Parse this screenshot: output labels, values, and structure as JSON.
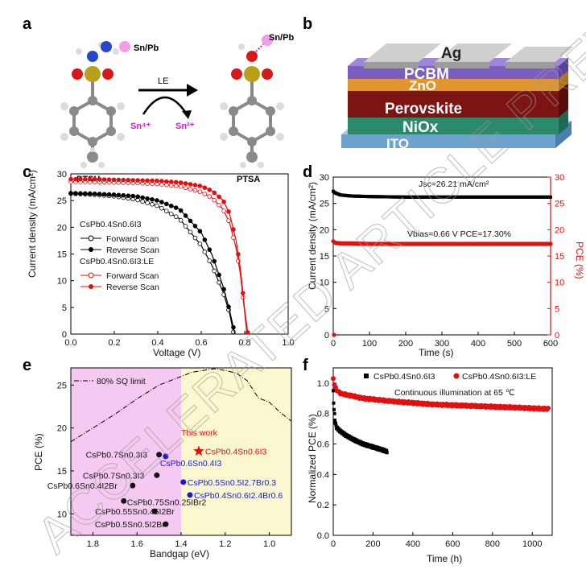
{
  "panel_labels": {
    "a": "a",
    "b": "b",
    "c": "c",
    "d": "d",
    "e": "e",
    "f": "f"
  },
  "panel_a": {
    "left_label": "PTSH",
    "right_label": "PTSA",
    "metal_left": "Sn/Pb",
    "metal_right": "Sn/Pb",
    "arrow_label": "LE",
    "sn4": "Sn⁴⁺",
    "sn2": "Sn²⁺"
  },
  "panel_b": {
    "layers": [
      "Ag",
      "PCBM",
      "ZnO",
      "Perovskite",
      "NiOx",
      "ITO"
    ],
    "colors": {
      "ag": "#b5b5b5",
      "pcbm": "#7b5fc0",
      "zno": "#e1952e",
      "perovskite": "#7d1414",
      "niox": "#2c8a6a",
      "ito": "#6fa3cf"
    }
  },
  "panel_c": {
    "xlabel": "Voltage (V)",
    "ylabel": "Current density (mA/cm²)",
    "legend": {
      "group1": "CsPb0.4Sn0.6I3",
      "group2": "CsPb0.4Sn0.6I3:LE",
      "forward": "Forward Scan",
      "reverse": "Reverse Scan"
    },
    "colors": {
      "ref": "#000000",
      "le": "#e01010"
    }
  },
  "panel_d": {
    "xlabel": "Time (s)",
    "ylabel_left": "Current density (mA/cm²)",
    "ylabel_right": "PCE (%)",
    "annot_jsc": "Jsc=26.21 mA/cm²",
    "annot_vbias": "Vbias=0.66 V PCE=17.30%"
  },
  "panel_e": {
    "xlabel": "Bandgap (eV)",
    "ylabel": "PCE (%)",
    "sq_label": "80% SQ limit",
    "this_work": "This work",
    "colors": {
      "pink": "#f5c9f2",
      "yellow": "#fbf8cf",
      "blue": "#1a1acc",
      "red": "#e01010"
    }
  },
  "panel_f": {
    "xlabel": "Time (h)",
    "ylabel": "Normalized PCE (%)",
    "legend_ref": "CsPb0.4Sn0.6I3",
    "legend_le": "CsPb0.4Sn0.6I3:LE",
    "annot": "Continuous illumination at 65 ℃"
  },
  "watermark": "ACCELERATED ARTICLE PREVIEW",
  "chart_data": [
    {
      "type": "line",
      "panel": "c",
      "xlabel": "Voltage (V)",
      "ylabel": "Current density (mA/cm2)",
      "xlim": [
        0,
        1.0
      ],
      "ylim": [
        0,
        30
      ],
      "xticks": [
        0.0,
        0.2,
        0.4,
        0.6,
        0.8,
        1.0
      ],
      "yticks": [
        0,
        5,
        10,
        15,
        20,
        25,
        30
      ],
      "series": [
        {
          "name": "Forward Scan",
          "group": "CsPb0.4Sn0.6I3",
          "x": [
            0,
            0.1,
            0.2,
            0.3,
            0.4,
            0.5,
            0.6,
            0.65,
            0.7,
            0.73,
            0.75
          ],
          "y": [
            26.3,
            26.1,
            25.8,
            25.2,
            24.0,
            21.6,
            16.6,
            12.8,
            7.9,
            4.0,
            0
          ]
        },
        {
          "name": "Reverse Scan",
          "group": "CsPb0.4Sn0.6I3",
          "x": [
            0,
            0.1,
            0.2,
            0.3,
            0.4,
            0.5,
            0.6,
            0.65,
            0.7,
            0.73,
            0.755
          ],
          "y": [
            26.4,
            26.3,
            26.1,
            25.8,
            25.0,
            23.4,
            19.0,
            14.8,
            9.0,
            4.5,
            0
          ]
        },
        {
          "name": "Forward Scan",
          "group": "CsPb0.4Sn0.6I3:LE",
          "x": [
            0,
            0.1,
            0.2,
            0.3,
            0.4,
            0.5,
            0.6,
            0.65,
            0.7,
            0.73,
            0.76,
            0.78,
            0.8,
            0.81
          ],
          "y": [
            28.5,
            28.5,
            28.4,
            28.3,
            28.1,
            27.7,
            26.6,
            25.5,
            23.4,
            20.9,
            16.2,
            11.2,
            4.0,
            0
          ]
        },
        {
          "name": "Reverse Scan",
          "group": "CsPb0.4Sn0.6I3:LE",
          "x": [
            0,
            0.1,
            0.2,
            0.3,
            0.4,
            0.5,
            0.6,
            0.65,
            0.7,
            0.73,
            0.76,
            0.78,
            0.8,
            0.815
          ],
          "y": [
            29.0,
            29.0,
            28.9,
            28.8,
            28.7,
            28.4,
            27.7,
            26.8,
            25.1,
            22.6,
            17.6,
            12.3,
            4.6,
            0
          ]
        }
      ]
    },
    {
      "type": "scatter",
      "panel": "d",
      "xlabel": "Time (s)",
      "ylabel": "Current density (mA/cm2)",
      "ylabel_right": "PCE (%)",
      "xlim": [
        0,
        600
      ],
      "ylim": [
        0,
        30
      ],
      "xticks": [
        0,
        100,
        200,
        300,
        400,
        500,
        600
      ],
      "yticks": [
        0,
        5,
        10,
        15,
        20,
        25,
        30
      ],
      "series": [
        {
          "name": "Current density",
          "axis": "left",
          "x": [
            0,
            5,
            20,
            50,
            100,
            200,
            300,
            400,
            500,
            600
          ],
          "y": [
            27.3,
            27.0,
            26.6,
            26.4,
            26.3,
            26.2,
            26.2,
            26.2,
            26.2,
            26.2
          ]
        },
        {
          "name": "PCE",
          "axis": "right",
          "x": [
            0,
            5,
            20,
            50,
            100,
            200,
            300,
            400,
            500,
            600
          ],
          "y": [
            17.8,
            17.5,
            17.4,
            17.4,
            17.3,
            17.3,
            17.3,
            17.3,
            17.3,
            17.3
          ]
        }
      ]
    },
    {
      "type": "scatter",
      "panel": "e",
      "xlabel": "Bandgap (eV)",
      "ylabel": "PCE (%)",
      "xlim": [
        1.9,
        0.9
      ],
      "ylim": [
        7.5,
        27
      ],
      "xticks": [
        1.8,
        1.6,
        1.4,
        1.2,
        1.0
      ],
      "yticks": [
        10,
        15,
        20,
        25
      ],
      "points": [
        {
          "label": "CsPb0.7Sn0.3I3",
          "x": 1.5,
          "y": 16.9,
          "color": "black"
        },
        {
          "label": "CsPb0.6Sn0.4I3",
          "x": 1.47,
          "y": 16.7,
          "color": "blue"
        },
        {
          "label": "CsPb0.4Sn0.6I3",
          "x": 1.32,
          "y": 17.3,
          "color": "red",
          "marker": "star"
        },
        {
          "label": "CsPb0.7Sn0.3I3",
          "x": 1.51,
          "y": 14.5,
          "color": "black"
        },
        {
          "label": "CsPb0.6Sn0.4I2Br",
          "x": 1.62,
          "y": 13.3,
          "color": "black"
        },
        {
          "label": "CsPb0.5Sn0.5I2.7Br0.3",
          "x": 1.39,
          "y": 13.7,
          "color": "blue"
        },
        {
          "label": "CsPb0.4Sn0.6I2.4Br0.6",
          "x": 1.36,
          "y": 12.2,
          "color": "blue"
        },
        {
          "label": "CsPb0.75Sn0.25IBr2",
          "x": 1.66,
          "y": 11.5,
          "color": "black"
        },
        {
          "label": "CsPb0.55Sn0.45I2Br",
          "x": 1.52,
          "y": 10.3,
          "color": "black"
        },
        {
          "label": "CsPb0.5Sn0.5I2Br",
          "x": 1.47,
          "y": 8.8,
          "color": "black"
        }
      ],
      "sq_limit": {
        "x": [
          1.9,
          1.8,
          1.7,
          1.6,
          1.5,
          1.4,
          1.35,
          1.3,
          1.25,
          1.2,
          1.15,
          1.1,
          1.05,
          1.0,
          0.95,
          0.9
        ],
        "y": [
          18.4,
          20.0,
          21.6,
          23.4,
          25.0,
          26.0,
          26.5,
          26.7,
          26.9,
          26.7,
          26.4,
          25.5,
          23.5,
          23.0,
          21.8,
          20.8
        ]
      }
    },
    {
      "type": "scatter",
      "panel": "f",
      "xlabel": "Time (h)",
      "ylabel": "Normalized PCE (%)",
      "xlim": [
        0,
        1100
      ],
      "ylim": [
        0,
        1.1
      ],
      "xticks": [
        0,
        200,
        400,
        600,
        800,
        1000
      ],
      "yticks": [
        0.0,
        0.2,
        0.4,
        0.6,
        0.8,
        1.0
      ],
      "series": [
        {
          "name": "CsPb0.4Sn0.6I3",
          "x": [
            0,
            3,
            8,
            15,
            30,
            60,
            100,
            150,
            200,
            250,
            270
          ],
          "y": [
            0.95,
            0.84,
            0.76,
            0.71,
            0.69,
            0.66,
            0.63,
            0.6,
            0.58,
            0.56,
            0.55
          ]
        },
        {
          "name": "CsPb0.4Sn0.6I3:LE",
          "x": [
            0,
            5,
            10,
            20,
            40,
            80,
            150,
            300,
            500,
            700,
            900,
            1080
          ],
          "y": [
            1.03,
            1.0,
            0.97,
            0.95,
            0.93,
            0.92,
            0.9,
            0.88,
            0.86,
            0.85,
            0.84,
            0.83
          ]
        }
      ]
    }
  ]
}
